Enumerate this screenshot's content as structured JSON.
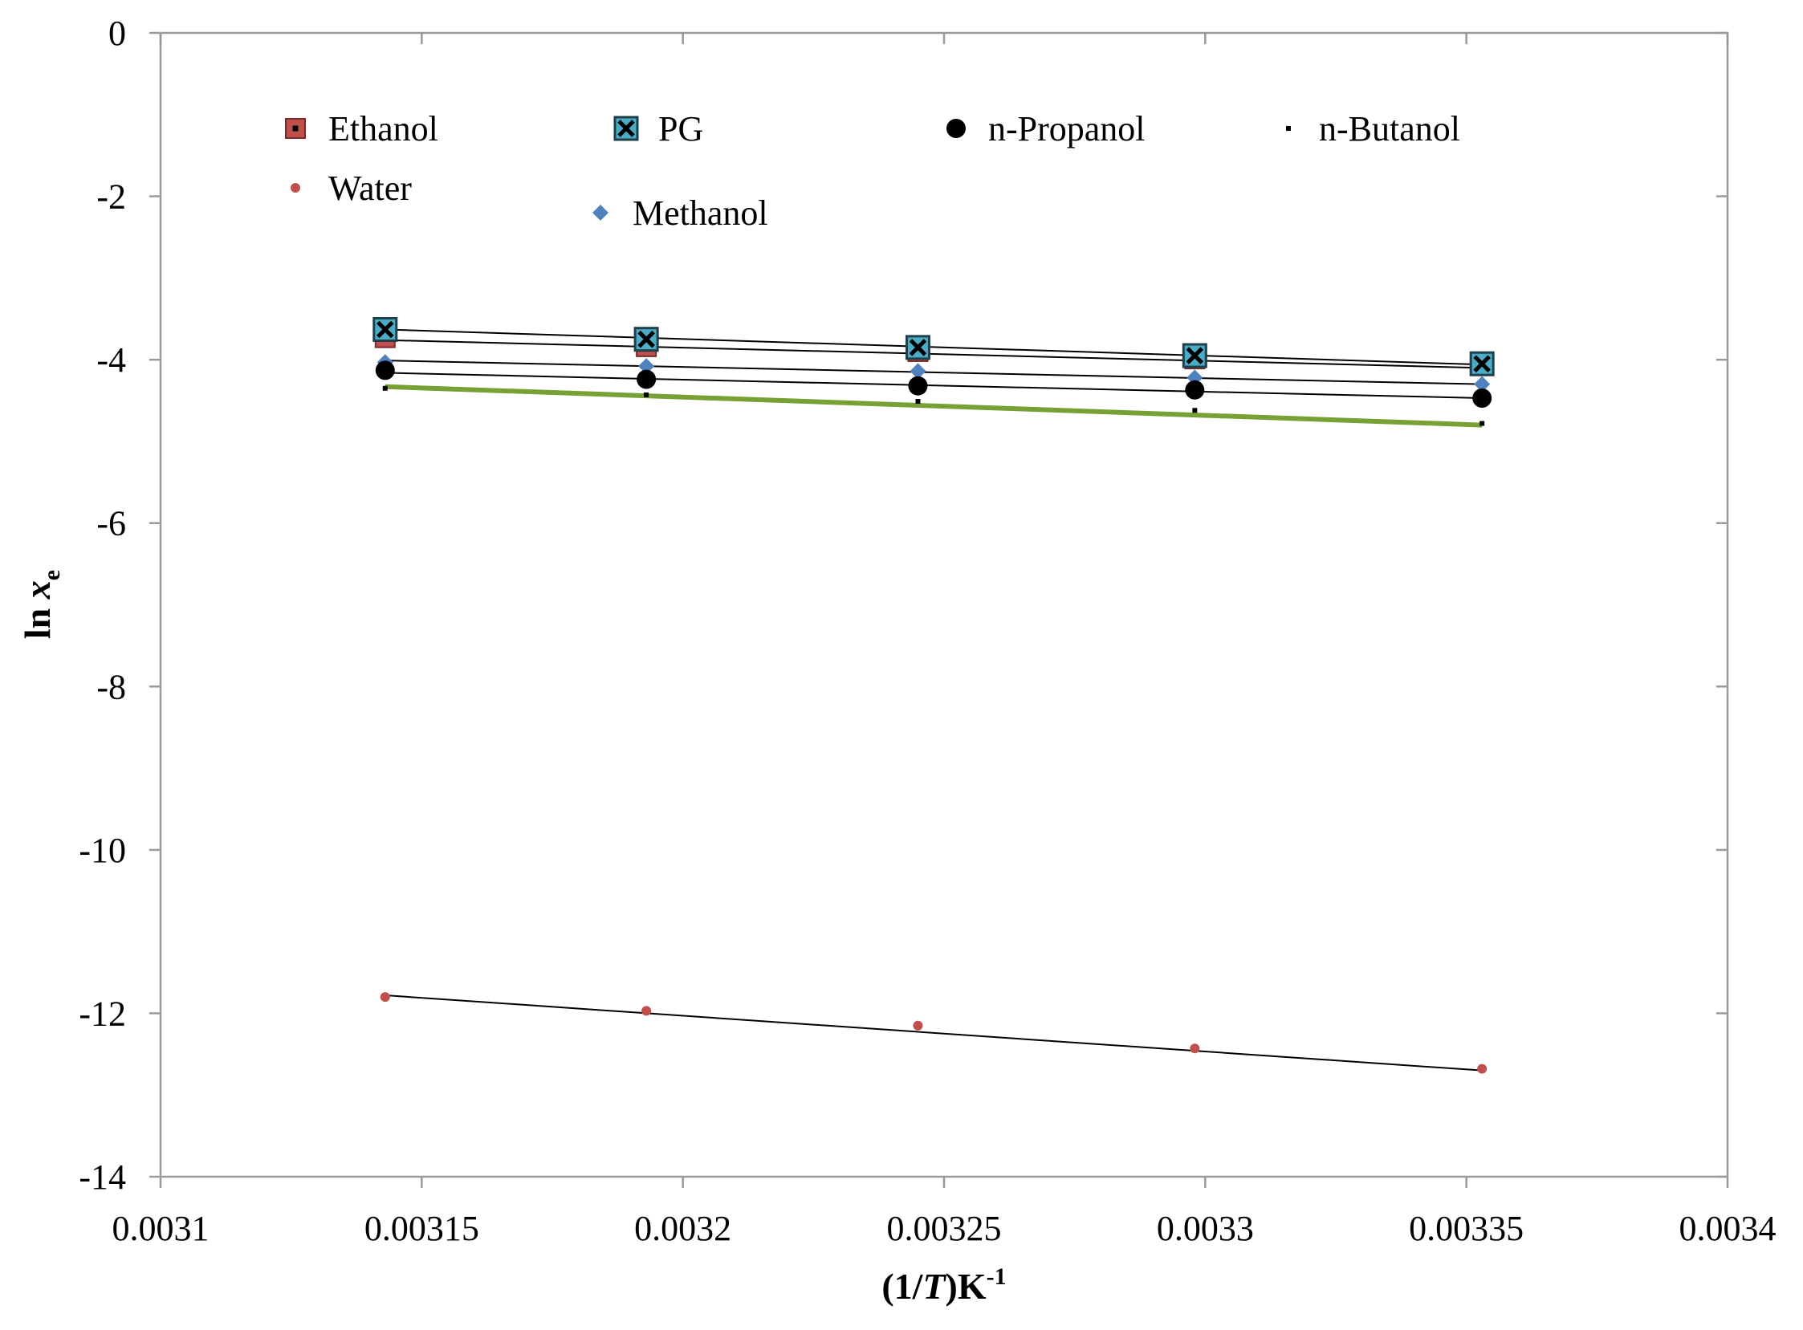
{
  "chart_data": {
    "type": "scatter",
    "title": "",
    "xlabel": "(1/T)K-1",
    "ylabel": "ln xe",
    "xlabel_parts": {
      "open": "(1/",
      "var": "T",
      "close": ")K",
      "sup": "-1"
    },
    "ylabel_parts": {
      "prefix": "ln ",
      "var": "x",
      "sub": "e"
    },
    "xlim": [
      0.0031,
      0.0034
    ],
    "ylim": [
      -14,
      0
    ],
    "xticks": [
      0.0031,
      0.00315,
      0.0032,
      0.00325,
      0.0033,
      0.00335,
      0.0034
    ],
    "xtick_labels": [
      "0.0031",
      "0.00315",
      "0.0032",
      "0.00325",
      "0.0033",
      "0.00335",
      "0.0034"
    ],
    "yticks": [
      0,
      -2,
      -4,
      -6,
      -8,
      -10,
      -12,
      -14
    ],
    "ytick_labels": [
      "0",
      "-2",
      "-4",
      "-6",
      "-8",
      "-10",
      "-12",
      "-14"
    ],
    "grid": false,
    "legend_position": "top-inside",
    "x": [
      0.003143,
      0.003193,
      0.003245,
      0.003298,
      0.003353
    ],
    "series": [
      {
        "name": "Ethanol",
        "marker": "square-dot",
        "color": "#c0504d",
        "line_color": "#000000",
        "values": [
          -3.73,
          -3.84,
          -3.9,
          -3.99,
          -4.06
        ],
        "fit": [
          -3.76,
          -4.1
        ]
      },
      {
        "name": "PG",
        "marker": "square-x",
        "color": "#4bacc6",
        "line_color": "#000000",
        "values": [
          -3.63,
          -3.75,
          -3.85,
          -3.95,
          -4.05
        ],
        "fit": [
          -3.63,
          -4.06
        ]
      },
      {
        "name": "n-Propanol",
        "marker": "circle",
        "color": "#000000",
        "line_color": "#000000",
        "values": [
          -4.13,
          -4.24,
          -4.32,
          -4.37,
          -4.47
        ],
        "fit": [
          -4.16,
          -4.47
        ]
      },
      {
        "name": "n-Butanol",
        "marker": "small-square",
        "color": "#000000",
        "line_color": "#77a035",
        "values": [
          -4.35,
          -4.43,
          -4.51,
          -4.62,
          -4.78
        ],
        "fit": [
          -4.33,
          -4.8
        ]
      },
      {
        "name": "Water",
        "marker": "small-circle",
        "color": "#c0504d",
        "line_color": "#000000",
        "values": [
          -11.8,
          -11.97,
          -12.15,
          -12.43,
          -12.68
        ],
        "fit": [
          -11.78,
          -12.7
        ]
      },
      {
        "name": "Methanol",
        "marker": "diamond",
        "color": "#4f81bd",
        "line_color": "#000000",
        "values": [
          -4.03,
          -4.08,
          -4.14,
          -4.22,
          -4.3
        ],
        "fit": [
          -4.01,
          -4.3
        ]
      }
    ]
  }
}
